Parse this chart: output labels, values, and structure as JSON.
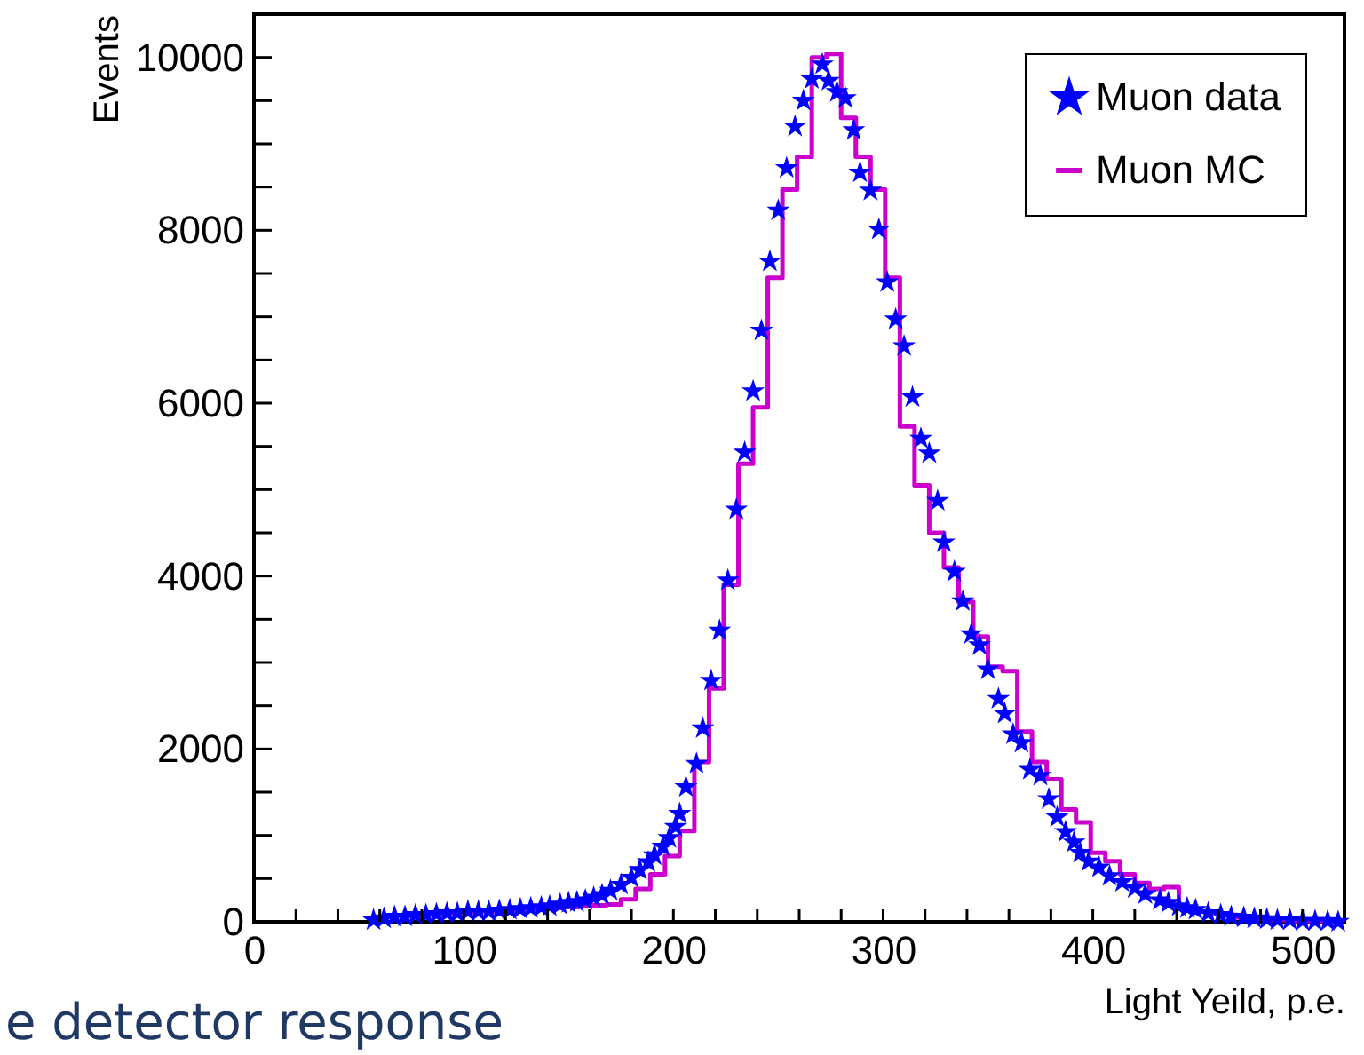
{
  "chart_data": {
    "type": "scatter",
    "xlabel": "Light Yeild, p.e.",
    "ylabel": "Events",
    "xlim": [
      0,
      520
    ],
    "ylim": [
      0,
      10500
    ],
    "xticks": [
      0,
      {
        "value": 20,
        "label": null
      },
      {
        "value": 40,
        "label": null
      },
      {
        "value": 60,
        "label": null
      },
      {
        "value": 80,
        "label": null
      },
      100,
      {
        "value": 120,
        "label": null
      },
      {
        "value": 140,
        "label": null
      },
      {
        "value": 160,
        "label": null
      },
      {
        "value": 180,
        "label": null
      },
      200,
      {
        "value": 220,
        "label": null
      },
      {
        "value": 240,
        "label": null
      },
      {
        "value": 260,
        "label": null
      },
      {
        "value": 280,
        "label": null
      },
      300,
      {
        "value": 320,
        "label": null
      },
      {
        "value": 340,
        "label": null
      },
      {
        "value": 360,
        "label": null
      },
      {
        "value": 380,
        "label": null
      },
      400,
      {
        "value": 420,
        "label": null
      },
      {
        "value": 440,
        "label": null
      },
      {
        "value": 460,
        "label": null
      },
      {
        "value": 480,
        "label": null
      },
      500
    ],
    "yticks": [
      0,
      {
        "value": 500,
        "label": null
      },
      {
        "value": 1000,
        "label": null
      },
      {
        "value": 1500,
        "label": null
      },
      2000,
      {
        "value": 2500,
        "label": null
      },
      {
        "value": 3000,
        "label": null
      },
      {
        "value": 3500,
        "label": null
      },
      4000,
      {
        "value": 4500,
        "label": null
      },
      {
        "value": 5000,
        "label": null
      },
      {
        "value": 5500,
        "label": null
      },
      6000,
      {
        "value": 6500,
        "label": null
      },
      {
        "value": 7000,
        "label": null
      },
      {
        "value": 7500,
        "label": null
      },
      8000,
      {
        "value": 8500,
        "label": null
      },
      {
        "value": 9000,
        "label": null
      },
      {
        "value": 9500,
        "label": null
      },
      10000
    ],
    "grid": false,
    "legend": "top right",
    "annotations": [
      "e detector response"
    ],
    "series": [
      {
        "name": "Muon data",
        "marker": "star",
        "color": "#0000ff",
        "x": [
          57,
          62,
          67,
          72,
          77,
          82,
          87,
          92,
          97,
          102,
          107,
          112,
          117,
          122,
          127,
          132,
          137,
          141,
          146,
          150,
          154,
          158,
          162,
          166,
          170,
          175,
          180,
          184,
          188,
          191,
          195,
          198,
          201,
          203,
          206,
          211,
          214,
          218,
          222,
          226,
          230,
          234,
          238,
          242,
          246,
          250,
          254,
          258,
          262,
          266,
          271,
          274,
          278,
          282,
          286,
          289,
          294,
          298,
          302,
          306,
          310,
          314,
          318,
          322,
          326,
          329,
          334,
          338,
          342,
          346,
          350,
          355,
          358,
          362,
          366,
          370,
          375,
          379,
          383,
          387,
          391,
          394,
          398,
          403,
          408,
          414,
          420,
          425,
          432,
          436,
          441,
          445,
          449,
          455,
          461,
          466,
          472,
          477,
          483,
          488,
          494,
          500,
          506,
          512,
          517
        ],
        "values": [
          20,
          40,
          60,
          60,
          80,
          80,
          90,
          100,
          100,
          120,
          120,
          120,
          130,
          140,
          150,
          160,
          170,
          180,
          200,
          220,
          230,
          250,
          280,
          310,
          360,
          430,
          510,
          600,
          690,
          770,
          870,
          970,
          1100,
          1250,
          1560,
          1830,
          2240,
          2790,
          3370,
          3950,
          4770,
          5430,
          6140,
          6840,
          7640,
          8230,
          8720,
          9200,
          9500,
          9750,
          9920,
          9730,
          9600,
          9530,
          9160,
          8670,
          8460,
          8010,
          7400,
          6970,
          6660,
          6070,
          5590,
          5420,
          4870,
          4390,
          4050,
          3710,
          3330,
          3200,
          2920,
          2580,
          2410,
          2170,
          2070,
          1760,
          1690,
          1420,
          1210,
          1040,
          920,
          800,
          700,
          630,
          530,
          460,
          390,
          320,
          250,
          220,
          180,
          160,
          140,
          100,
          80,
          60,
          50,
          40,
          30,
          20,
          20,
          10,
          10,
          10,
          0
        ]
      },
      {
        "name": "Muon MC",
        "type": "step",
        "color": "#cc00cc",
        "x": [
          70,
          77,
          84,
          91,
          98,
          105,
          112,
          119,
          126,
          133,
          140,
          147,
          154,
          161,
          168,
          175,
          182,
          189,
          196,
          203,
          210,
          217,
          224,
          231,
          238,
          245,
          252,
          259,
          266,
          273,
          280,
          287,
          294,
          301,
          308,
          315,
          322,
          329,
          336,
          343,
          350,
          357,
          364,
          371,
          378,
          385,
          392,
          399,
          406,
          413,
          420,
          427,
          434,
          441,
          448,
          455,
          462,
          469,
          476,
          483,
          490,
          497,
          504,
          511,
          518
        ],
        "values": [
          70,
          80,
          90,
          100,
          110,
          120,
          120,
          130,
          140,
          150,
          160,
          170,
          180,
          190,
          200,
          260,
          380,
          550,
          760,
          1050,
          1850,
          2700,
          3900,
          5300,
          5950,
          7450,
          8470,
          8850,
          10000,
          10040,
          9300,
          8850,
          8470,
          7450,
          5730,
          5050,
          4500,
          4100,
          3700,
          3300,
          2950,
          2900,
          2200,
          1850,
          1650,
          1300,
          1150,
          800,
          700,
          550,
          450,
          380,
          400,
          150,
          120,
          100,
          80,
          50,
          30,
          20,
          20,
          10,
          10,
          0,
          0
        ]
      }
    ]
  }
}
